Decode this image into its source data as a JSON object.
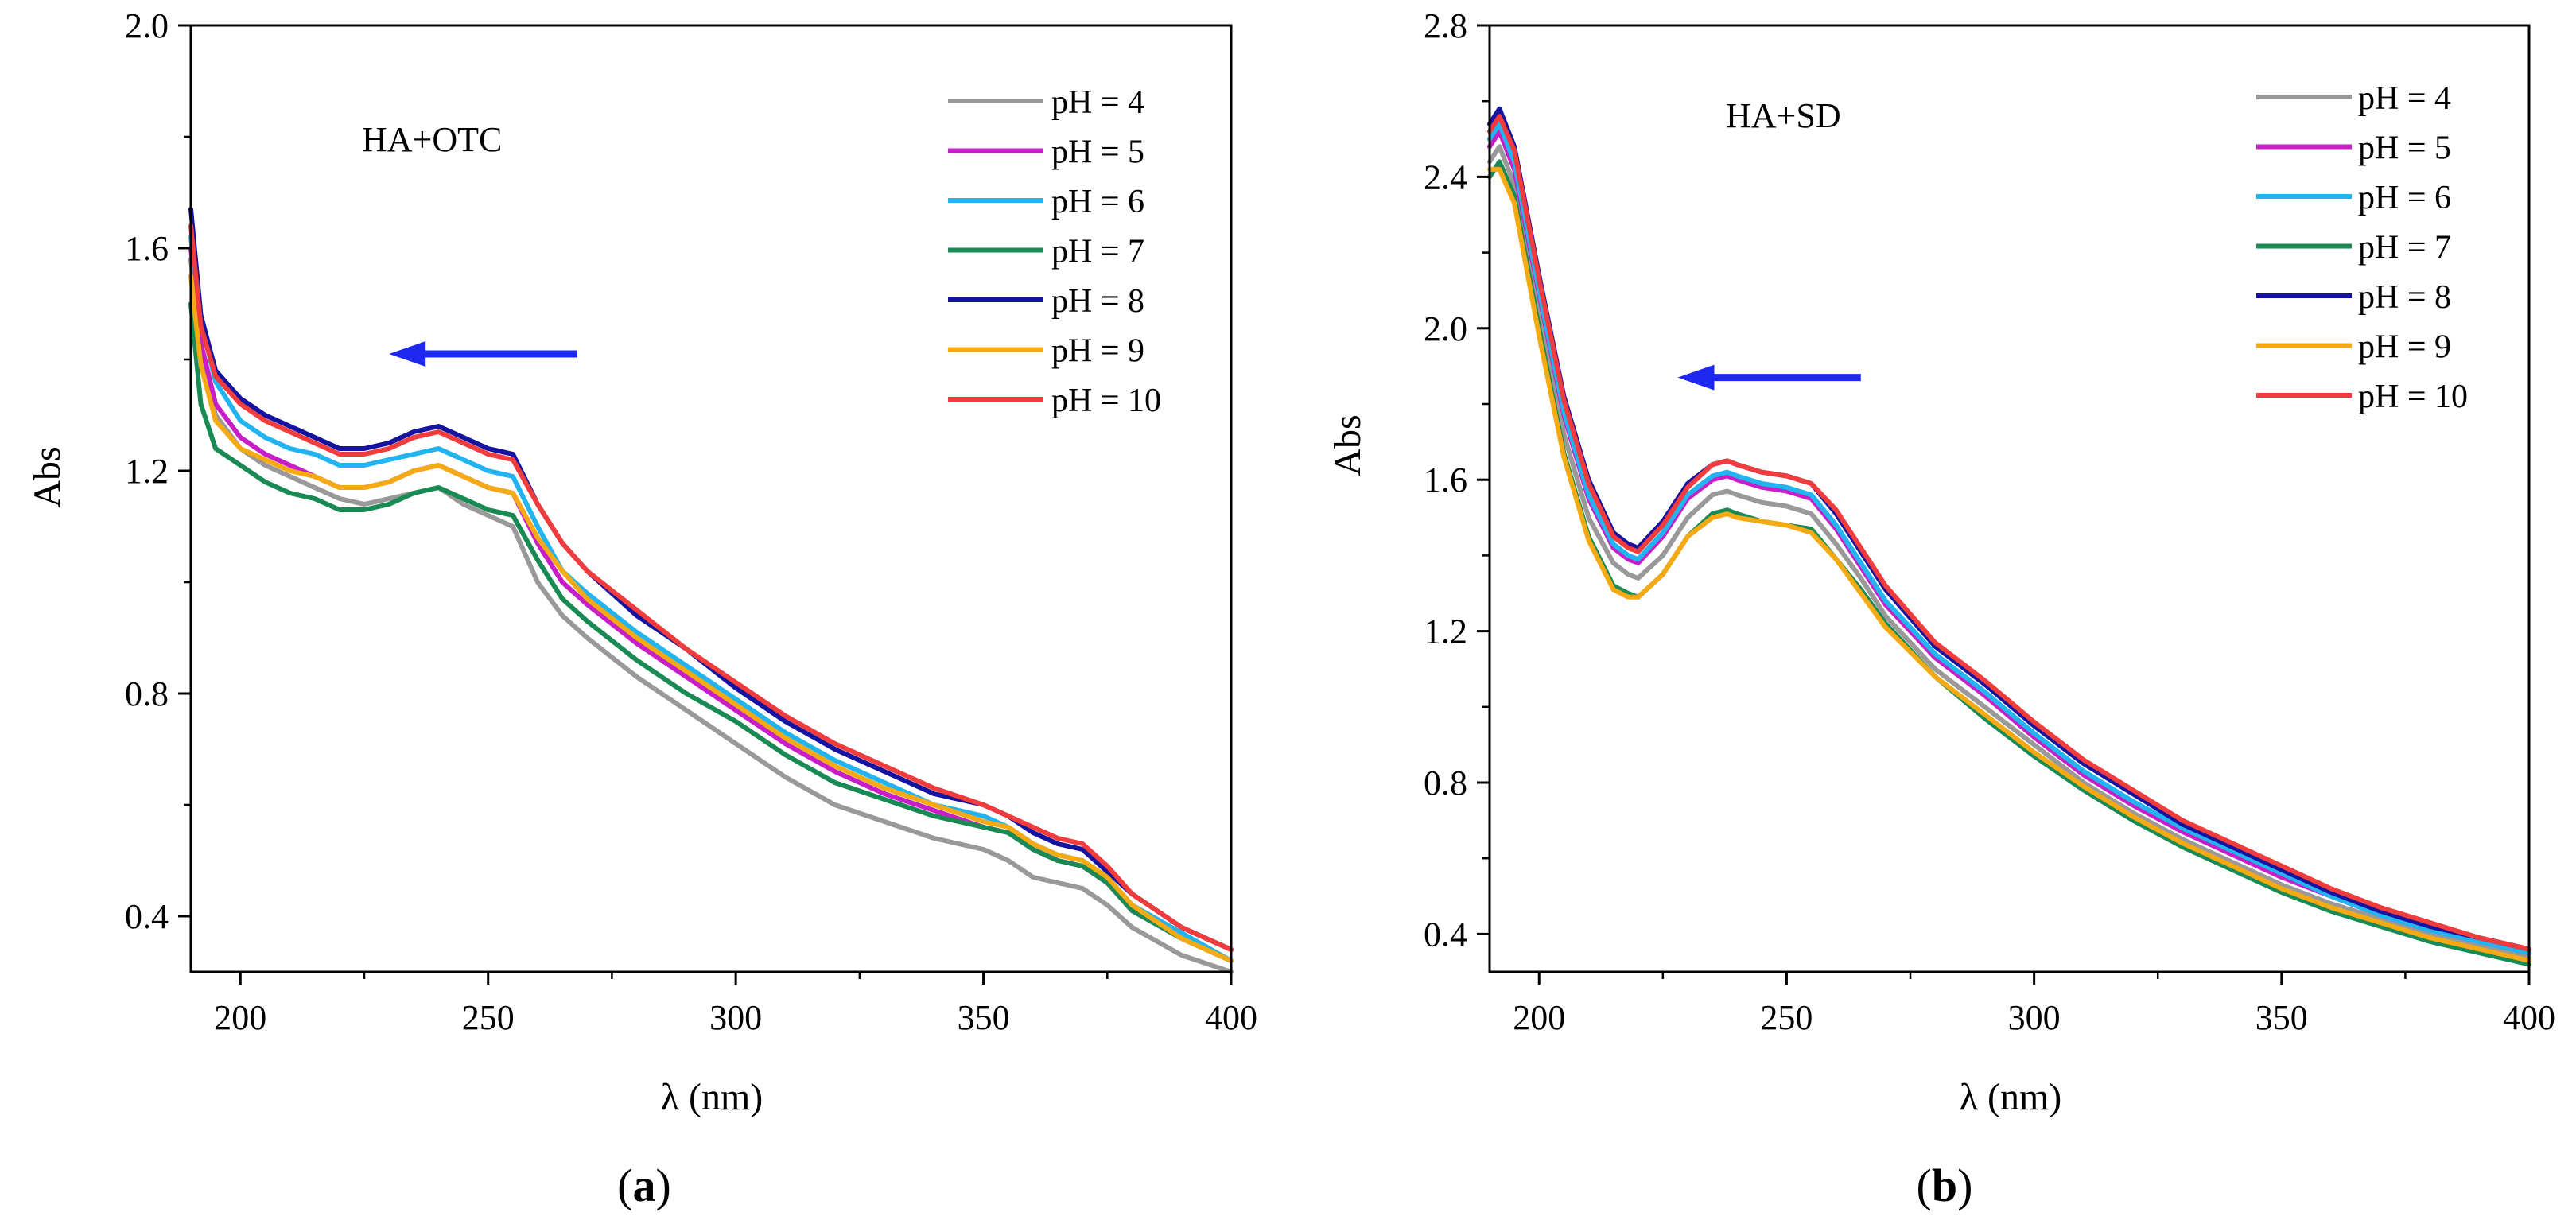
{
  "figure": {
    "panel_a_label": {
      "open": "(",
      "letter": "a",
      "close": ")"
    },
    "panel_b_label": {
      "open": "(",
      "letter": "b",
      "close": ")"
    }
  },
  "colors": {
    "pH = 4": "#999999",
    "pH = 5": "#c81ec8",
    "pH = 6": "#22b4f0",
    "pH = 7": "#1a8a55",
    "pH = 8": "#1414a0",
    "pH = 9": "#f5aa14",
    "pH = 10": "#f03c3c",
    "arrow": "#1e28f0"
  },
  "chart_data": [
    {
      "type": "line",
      "annotation": "HA+OTC",
      "xlabel": "λ (nm)",
      "ylabel": "Abs",
      "xlim": [
        190,
        400
      ],
      "ylim": [
        0.3,
        2.0
      ],
      "xticks": [
        200,
        250,
        300,
        350,
        400
      ],
      "yticks": [
        0.4,
        0.8,
        1.2,
        1.6,
        2.0
      ],
      "legend_position": "top-right",
      "arrow": {
        "direction": "left",
        "from": [
          268,
          1.41
        ],
        "to": [
          230,
          1.41
        ]
      },
      "x": [
        190,
        192,
        195,
        200,
        205,
        210,
        215,
        220,
        225,
        230,
        235,
        240,
        245,
        250,
        255,
        260,
        265,
        270,
        280,
        290,
        300,
        310,
        320,
        330,
        340,
        350,
        355,
        360,
        365,
        370,
        375,
        380,
        390,
        400
      ],
      "series": [
        {
          "name": "pH = 4",
          "values": [
            1.58,
            1.41,
            1.3,
            1.24,
            1.21,
            1.19,
            1.17,
            1.15,
            1.14,
            1.15,
            1.16,
            1.17,
            1.14,
            1.12,
            1.1,
            1.0,
            0.94,
            0.9,
            0.83,
            0.77,
            0.71,
            0.65,
            0.6,
            0.57,
            0.54,
            0.52,
            0.5,
            0.47,
            0.46,
            0.45,
            0.42,
            0.38,
            0.33,
            0.3
          ]
        },
        {
          "name": "pH = 5",
          "values": [
            1.6,
            1.43,
            1.32,
            1.26,
            1.23,
            1.21,
            1.19,
            1.17,
            1.17,
            1.18,
            1.2,
            1.21,
            1.19,
            1.17,
            1.16,
            1.07,
            1.0,
            0.96,
            0.89,
            0.83,
            0.77,
            0.71,
            0.66,
            0.62,
            0.59,
            0.56,
            0.55,
            0.52,
            0.5,
            0.49,
            0.46,
            0.41,
            0.36,
            0.32
          ]
        },
        {
          "name": "pH = 6",
          "values": [
            1.62,
            1.47,
            1.36,
            1.29,
            1.26,
            1.24,
            1.23,
            1.21,
            1.21,
            1.22,
            1.23,
            1.24,
            1.22,
            1.2,
            1.19,
            1.1,
            1.02,
            0.98,
            0.91,
            0.85,
            0.79,
            0.73,
            0.68,
            0.64,
            0.6,
            0.58,
            0.56,
            0.53,
            0.51,
            0.5,
            0.47,
            0.42,
            0.37,
            0.32
          ]
        },
        {
          "name": "pH = 7",
          "values": [
            1.5,
            1.32,
            1.24,
            1.21,
            1.18,
            1.16,
            1.15,
            1.13,
            1.13,
            1.14,
            1.16,
            1.17,
            1.15,
            1.13,
            1.12,
            1.04,
            0.97,
            0.93,
            0.86,
            0.8,
            0.75,
            0.69,
            0.64,
            0.61,
            0.58,
            0.56,
            0.55,
            0.52,
            0.5,
            0.49,
            0.46,
            0.41,
            0.36,
            0.32
          ]
        },
        {
          "name": "pH = 8",
          "values": [
            1.67,
            1.48,
            1.38,
            1.33,
            1.3,
            1.28,
            1.26,
            1.24,
            1.24,
            1.25,
            1.27,
            1.28,
            1.26,
            1.24,
            1.23,
            1.14,
            1.07,
            1.02,
            0.94,
            0.88,
            0.81,
            0.75,
            0.7,
            0.66,
            0.62,
            0.6,
            0.58,
            0.55,
            0.53,
            0.52,
            0.48,
            0.44,
            0.38,
            0.34
          ]
        },
        {
          "name": "pH = 9",
          "values": [
            1.55,
            1.39,
            1.29,
            1.24,
            1.22,
            1.2,
            1.19,
            1.17,
            1.17,
            1.18,
            1.2,
            1.21,
            1.19,
            1.17,
            1.16,
            1.08,
            1.02,
            0.97,
            0.9,
            0.84,
            0.78,
            0.72,
            0.67,
            0.63,
            0.6,
            0.57,
            0.56,
            0.53,
            0.51,
            0.5,
            0.47,
            0.42,
            0.36,
            0.32
          ]
        },
        {
          "name": "pH = 10",
          "values": [
            1.64,
            1.46,
            1.37,
            1.32,
            1.29,
            1.27,
            1.25,
            1.23,
            1.23,
            1.24,
            1.26,
            1.27,
            1.25,
            1.23,
            1.22,
            1.14,
            1.07,
            1.02,
            0.95,
            0.88,
            0.82,
            0.76,
            0.71,
            0.67,
            0.63,
            0.6,
            0.58,
            0.56,
            0.54,
            0.53,
            0.49,
            0.44,
            0.38,
            0.34
          ]
        }
      ]
    },
    {
      "type": "line",
      "annotation": "HA+SD",
      "xlabel": "λ (nm)",
      "ylabel": "Abs",
      "xlim": [
        190,
        400
      ],
      "ylim": [
        0.3,
        2.8
      ],
      "xticks": [
        200,
        250,
        300,
        350,
        400
      ],
      "yticks": [
        0.4,
        0.8,
        1.2,
        1.6,
        2.0,
        2.4,
        2.8
      ],
      "legend_position": "top-right",
      "arrow": {
        "direction": "left",
        "from": [
          265,
          1.87
        ],
        "to": [
          228,
          1.87
        ]
      },
      "x": [
        190,
        192,
        195,
        200,
        205,
        210,
        215,
        218,
        220,
        225,
        230,
        235,
        238,
        240,
        245,
        250,
        255,
        260,
        265,
        270,
        280,
        290,
        300,
        310,
        320,
        330,
        340,
        350,
        360,
        370,
        380,
        390,
        400
      ],
      "series": [
        {
          "name": "pH = 4",
          "values": [
            2.44,
            2.48,
            2.38,
            2.04,
            1.72,
            1.5,
            1.38,
            1.35,
            1.34,
            1.4,
            1.5,
            1.56,
            1.57,
            1.56,
            1.54,
            1.53,
            1.51,
            1.43,
            1.34,
            1.24,
            1.1,
            1.0,
            0.9,
            0.8,
            0.72,
            0.65,
            0.59,
            0.53,
            0.48,
            0.44,
            0.4,
            0.37,
            0.34
          ]
        },
        {
          "name": "pH = 5",
          "values": [
            2.48,
            2.52,
            2.42,
            2.09,
            1.77,
            1.55,
            1.42,
            1.39,
            1.38,
            1.45,
            1.55,
            1.6,
            1.61,
            1.6,
            1.58,
            1.57,
            1.55,
            1.47,
            1.37,
            1.27,
            1.13,
            1.03,
            0.92,
            0.82,
            0.74,
            0.67,
            0.61,
            0.55,
            0.5,
            0.45,
            0.41,
            0.38,
            0.35
          ]
        },
        {
          "name": "pH = 6",
          "values": [
            2.5,
            2.54,
            2.44,
            2.1,
            1.78,
            1.56,
            1.43,
            1.4,
            1.39,
            1.46,
            1.56,
            1.61,
            1.62,
            1.61,
            1.59,
            1.58,
            1.56,
            1.48,
            1.38,
            1.28,
            1.14,
            1.04,
            0.93,
            0.83,
            0.75,
            0.68,
            0.62,
            0.56,
            0.5,
            0.45,
            0.41,
            0.38,
            0.35
          ]
        },
        {
          "name": "pH = 7",
          "values": [
            2.4,
            2.44,
            2.35,
            2.0,
            1.67,
            1.45,
            1.32,
            1.3,
            1.29,
            1.35,
            1.45,
            1.51,
            1.52,
            1.51,
            1.49,
            1.48,
            1.47,
            1.39,
            1.31,
            1.22,
            1.08,
            0.97,
            0.87,
            0.78,
            0.7,
            0.63,
            0.57,
            0.51,
            0.46,
            0.42,
            0.38,
            0.35,
            0.32
          ]
        },
        {
          "name": "pH = 8",
          "values": [
            2.54,
            2.58,
            2.48,
            2.14,
            1.82,
            1.6,
            1.46,
            1.43,
            1.42,
            1.49,
            1.59,
            1.64,
            1.65,
            1.64,
            1.62,
            1.61,
            1.59,
            1.51,
            1.41,
            1.31,
            1.16,
            1.06,
            0.95,
            0.85,
            0.77,
            0.69,
            0.63,
            0.57,
            0.51,
            0.46,
            0.42,
            0.39,
            0.36
          ]
        },
        {
          "name": "pH = 9",
          "values": [
            2.42,
            2.42,
            2.33,
            1.98,
            1.66,
            1.44,
            1.31,
            1.29,
            1.29,
            1.35,
            1.45,
            1.5,
            1.51,
            1.5,
            1.49,
            1.48,
            1.46,
            1.39,
            1.3,
            1.21,
            1.08,
            0.98,
            0.88,
            0.79,
            0.71,
            0.64,
            0.58,
            0.52,
            0.47,
            0.43,
            0.39,
            0.36,
            0.33
          ]
        },
        {
          "name": "pH = 10",
          "values": [
            2.52,
            2.56,
            2.47,
            2.13,
            1.81,
            1.59,
            1.45,
            1.42,
            1.41,
            1.48,
            1.58,
            1.64,
            1.65,
            1.64,
            1.62,
            1.61,
            1.59,
            1.52,
            1.42,
            1.32,
            1.17,
            1.07,
            0.96,
            0.86,
            0.78,
            0.7,
            0.64,
            0.58,
            0.52,
            0.47,
            0.43,
            0.39,
            0.36
          ]
        }
      ]
    }
  ]
}
